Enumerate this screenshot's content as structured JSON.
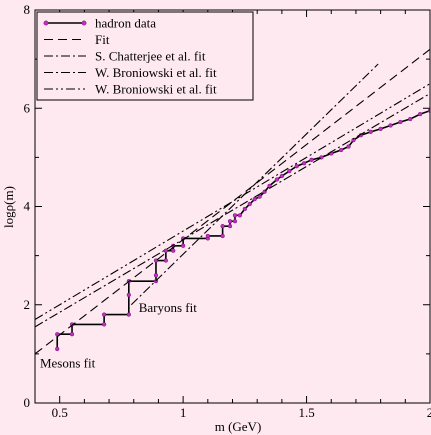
{
  "chart_data": {
    "type": "line",
    "xlabel": "m (GeV)",
    "ylabel": "logρ(m)",
    "xlim": [
      0.4,
      2.0
    ],
    "ylim": [
      0,
      8
    ],
    "x_ticks": [
      0.5,
      1,
      1.5,
      2
    ],
    "x_tick_labels": [
      "0.5",
      "1",
      "1.5",
      "2"
    ],
    "y_ticks": [
      0,
      2,
      4,
      6,
      8
    ],
    "y_tick_labels": [
      "0",
      "2",
      "4",
      "6",
      "8"
    ],
    "grid": false,
    "legend_position": "top-left",
    "colors": {
      "background": "#fde9ef",
      "data_line": "#000000",
      "data_marker": "#c030c0"
    },
    "series": [
      {
        "name": "hadron data",
        "style": "step-with-markers",
        "points": [
          [
            0.49,
            1.1
          ],
          [
            0.49,
            1.4
          ],
          [
            0.55,
            1.4
          ],
          [
            0.55,
            1.6
          ],
          [
            0.68,
            1.6
          ],
          [
            0.68,
            1.8
          ],
          [
            0.78,
            1.8
          ],
          [
            0.78,
            2.2
          ],
          [
            0.78,
            2.48
          ],
          [
            0.89,
            2.48
          ],
          [
            0.89,
            2.6
          ],
          [
            0.89,
            2.9
          ],
          [
            0.93,
            2.9
          ],
          [
            0.93,
            3.1
          ],
          [
            0.96,
            3.1
          ],
          [
            0.96,
            3.2
          ],
          [
            1.0,
            3.2
          ],
          [
            1.0,
            3.35
          ],
          [
            1.1,
            3.35
          ],
          [
            1.1,
            3.4
          ],
          [
            1.16,
            3.4
          ],
          [
            1.16,
            3.6
          ],
          [
            1.19,
            3.6
          ],
          [
            1.19,
            3.7
          ],
          [
            1.21,
            3.7
          ],
          [
            1.21,
            3.82
          ],
          [
            1.23,
            3.82
          ],
          [
            1.25,
            3.95
          ],
          [
            1.27,
            4.05
          ],
          [
            1.29,
            4.15
          ],
          [
            1.31,
            4.2
          ],
          [
            1.33,
            4.3
          ],
          [
            1.35,
            4.42
          ],
          [
            1.38,
            4.55
          ],
          [
            1.4,
            4.62
          ],
          [
            1.43,
            4.72
          ],
          [
            1.46,
            4.82
          ],
          [
            1.49,
            4.88
          ],
          [
            1.52,
            4.95
          ],
          [
            1.56,
            5.0
          ],
          [
            1.6,
            5.08
          ],
          [
            1.64,
            5.15
          ],
          [
            1.67,
            5.22
          ],
          [
            1.69,
            5.35
          ],
          [
            1.72,
            5.45
          ],
          [
            1.76,
            5.52
          ],
          [
            1.8,
            5.58
          ],
          [
            1.84,
            5.65
          ],
          [
            1.88,
            5.72
          ],
          [
            1.92,
            5.78
          ],
          [
            1.96,
            5.88
          ],
          [
            2.0,
            5.95
          ]
        ]
      },
      {
        "name": "Fit",
        "style": "dashed",
        "points": [
          [
            0.4,
            1.0
          ],
          [
            2.0,
            7.2
          ]
        ]
      },
      {
        "name": "S. Chatterjee et al. fit",
        "style": "dashdot",
        "points": [
          [
            0.4,
            1.55
          ],
          [
            2.0,
            6.3
          ]
        ]
      },
      {
        "name": "W. Broniowski et al. fit",
        "style": "dashdot",
        "points": [
          [
            0.79,
            2.0
          ],
          [
            1.79,
            6.9
          ]
        ]
      },
      {
        "name": "W. Broniowski et al. fit",
        "style": "dashdotdot",
        "points": [
          [
            0.4,
            1.7
          ],
          [
            2.0,
            6.5
          ]
        ]
      }
    ],
    "annotations": [
      {
        "text": "Baryons fit",
        "x": 0.82,
        "y": 1.85
      },
      {
        "text": "Mesons fit",
        "x": 0.42,
        "y": 0.72
      }
    ]
  }
}
